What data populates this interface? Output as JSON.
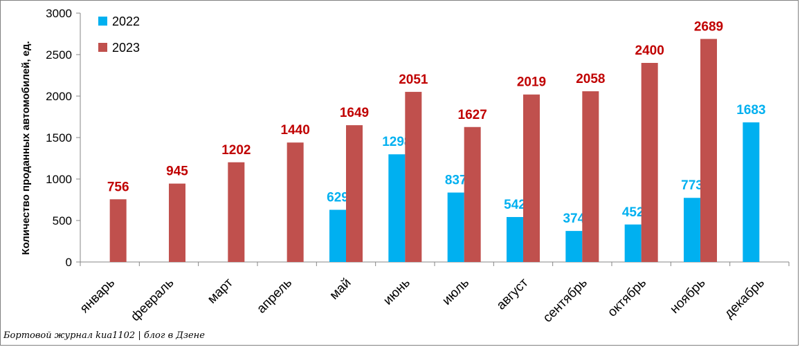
{
  "chart_data": {
    "type": "bar",
    "ylabel": "Количество проданных  автомобилей, ед.",
    "ylim": [
      0,
      3000
    ],
    "yticks": [
      "0",
      "500",
      "1000",
      "1500",
      "2000",
      "2500",
      "3000"
    ],
    "legend_position": "top-left",
    "grid": false,
    "categories": [
      "январь",
      "февраль",
      "март",
      "апрель",
      "май",
      "июнь",
      "июль",
      "август",
      "сентябрь",
      "октябрь",
      "ноябрь",
      "декабрь"
    ],
    "series": [
      {
        "name": "2022",
        "color": "#00b0f0",
        "label_color": "#00b0f0",
        "values": [
          null,
          null,
          null,
          null,
          629,
          1298,
          837,
          542,
          374,
          452,
          773,
          1683
        ]
      },
      {
        "name": "2023",
        "color": "#c0504d",
        "label_color": "#c00000",
        "values": [
          756,
          945,
          1202,
          1440,
          1649,
          2051,
          1627,
          2019,
          2058,
          2400,
          2689,
          null
        ]
      }
    ]
  },
  "watermark": "Бортовой журнал kиа1102 | блог в Дзене"
}
